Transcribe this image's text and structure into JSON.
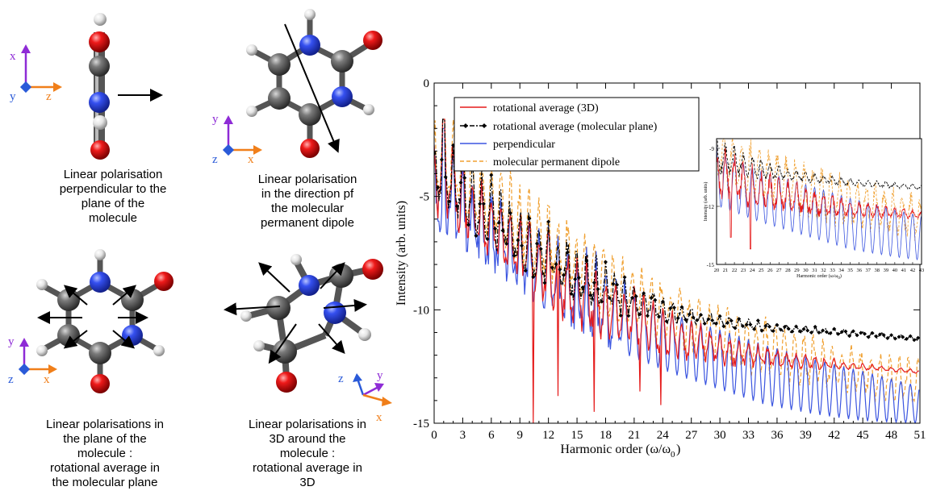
{
  "panels": [
    {
      "caption": [
        "Linear polarisation",
        "perpendicular to the",
        "plane of the",
        "molecule"
      ]
    },
    {
      "caption": [
        "Linear polarisation",
        "in the direction pf",
        "the molecular",
        "permanent dipole"
      ]
    },
    {
      "caption": [
        "Linear polarisations in",
        "the plane of the",
        "molecule :",
        "rotational average in",
        "the molecular plane"
      ]
    },
    {
      "caption": [
        "Linear polarisations in",
        "3D around the",
        "molecule :",
        "rotational average in",
        "3D"
      ]
    }
  ],
  "axes_labels": {
    "p1": [
      "x",
      "y",
      "z"
    ],
    "p2": [
      "y",
      "z",
      "x"
    ],
    "p3": [
      "y",
      "z",
      "x"
    ],
    "p4": [
      "z",
      "y",
      "x"
    ]
  },
  "colors": {
    "axis_x": "#f07f1a",
    "axis_y": "#8e2bd6",
    "axis_z": "#2a5ad8",
    "carbon": "#555555",
    "nitrogen": "#2b45e0",
    "oxygen": "#e01010",
    "hydrogen": "#e6e6e6",
    "red": "#e51b1b",
    "black": "#000000",
    "blue": "#3b55e0",
    "orange": "#f0a030"
  },
  "chart_data": [
    {
      "type": "line",
      "xlabel": "Harmonic order (ω/ω",
      "xlabel_sub": "0",
      "xlabel_end": ")",
      "ylabel": "Intensity (arb. units)",
      "xlim": [
        0,
        51
      ],
      "ylim": [
        -15,
        0
      ],
      "xticks": [
        0,
        3,
        6,
        9,
        12,
        15,
        18,
        21,
        24,
        27,
        30,
        33,
        36,
        39,
        42,
        45,
        48,
        51
      ],
      "yticks": [
        0,
        -5,
        -10,
        -15
      ],
      "legend_position": "top-left",
      "series": [
        {
          "name": "rotational average (3D)",
          "color": "#e51b1b",
          "dash": "",
          "trend": [
            [
              1,
              -4.5
            ],
            [
              5,
              -6.2
            ],
            [
              10,
              -8.0
            ],
            [
              15,
              -9.6
            ],
            [
              20,
              -10.5
            ],
            [
              25,
              -11.4
            ],
            [
              30,
              -11.9
            ],
            [
              35,
              -12.2
            ],
            [
              40,
              -12.4
            ],
            [
              45,
              -12.55
            ],
            [
              51,
              -12.75
            ]
          ],
          "amp": [
            [
              0,
              2.5
            ],
            [
              15,
              2.2
            ],
            [
              25,
              1.4
            ],
            [
              35,
              0.6
            ],
            [
              45,
              0.2
            ],
            [
              51,
              0.1
            ]
          ],
          "spikes": [
            [
              10.4,
              -15
            ],
            [
              16.8,
              -14.5
            ],
            [
              13.0,
              -13.8
            ],
            [
              21.6,
              -13.6
            ],
            [
              23.8,
              -14.2
            ]
          ]
        },
        {
          "name": "rotational average  (molecular plane)",
          "color": "#000000",
          "dash": "6,2,2,2",
          "trend": [
            [
              1,
              -4.2
            ],
            [
              5,
              -5.8
            ],
            [
              10,
              -7.4
            ],
            [
              15,
              -8.7
            ],
            [
              20,
              -9.6
            ],
            [
              25,
              -10.2
            ],
            [
              30,
              -10.55
            ],
            [
              35,
              -10.8
            ],
            [
              40,
              -10.95
            ],
            [
              45,
              -11.1
            ],
            [
              51,
              -11.3
            ]
          ],
          "amp": [
            [
              0,
              2.2
            ],
            [
              15,
              1.8
            ],
            [
              22,
              1.0
            ],
            [
              28,
              0.4
            ],
            [
              35,
              0.25
            ],
            [
              51,
              0.12
            ]
          ],
          "spikes": []
        },
        {
          "name": "perpendicular",
          "color": "#3b55e0",
          "dash": "",
          "trend": [
            [
              1,
              -5.0
            ],
            [
              5,
              -6.4
            ],
            [
              10,
              -8.0
            ],
            [
              15,
              -9.5
            ],
            [
              20,
              -10.6
            ],
            [
              25,
              -11.5
            ],
            [
              30,
              -12.2
            ],
            [
              35,
              -12.9
            ],
            [
              40,
              -13.4
            ],
            [
              45,
              -13.8
            ],
            [
              51,
              -14.2
            ]
          ],
          "amp": [
            [
              0,
              2.6
            ],
            [
              15,
              2.5
            ],
            [
              25,
              2.4
            ],
            [
              35,
              2.4
            ],
            [
              45,
              2.0
            ],
            [
              51,
              1.5
            ]
          ],
          "spikes": []
        },
        {
          "name": "molecular permanent dipole",
          "color": "#f0a030",
          "dash": "5,3",
          "trend": [
            [
              1,
              -3.8
            ],
            [
              5,
              -5.2
            ],
            [
              10,
              -6.9
            ],
            [
              15,
              -8.4
            ],
            [
              20,
              -9.6
            ],
            [
              25,
              -10.6
            ],
            [
              30,
              -11.4
            ],
            [
              35,
              -12.0
            ],
            [
              40,
              -12.5
            ],
            [
              45,
              -13.0
            ],
            [
              51,
              -13.3
            ]
          ],
          "amp": [
            [
              0,
              2.6
            ],
            [
              15,
              2.5
            ],
            [
              25,
              2.3
            ],
            [
              35,
              2.1
            ],
            [
              45,
              1.8
            ],
            [
              51,
              1.6
            ]
          ],
          "spikes": []
        }
      ]
    },
    {
      "type": "line",
      "xlabel": "Harmonic order (ω/ω",
      "xlabel_sub": "0",
      "xlabel_end": ")",
      "ylabel": "Intensity (arb. units)",
      "xlim": [
        20,
        43
      ],
      "ylim": [
        -15,
        -8.5
      ],
      "xticks": [
        20,
        21,
        22,
        23,
        24,
        25,
        26,
        27,
        28,
        29,
        30,
        31,
        32,
        33,
        34,
        35,
        36,
        37,
        38,
        39,
        40,
        41,
        42,
        43
      ],
      "yticks": [
        -9,
        -12,
        -15
      ],
      "ytick_labels": [
        "-9",
        "-12",
        "-15"
      ]
    }
  ]
}
